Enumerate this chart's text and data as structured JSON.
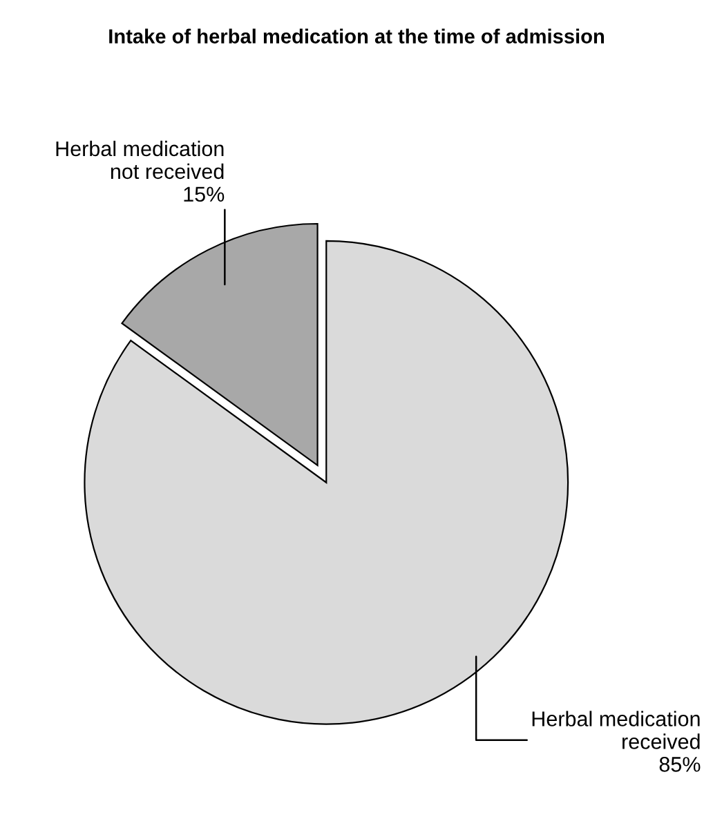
{
  "chart_data": {
    "type": "pie",
    "title": "Intake of herbal medication at the time of admission",
    "categories": [
      "Herbal medication\nreceived",
      "Herbal medication\nnot received"
    ],
    "values": [
      85,
      15
    ],
    "colors": [
      "#dadada",
      "#a8a8a8"
    ],
    "value_labels": [
      "85%",
      "15%"
    ]
  }
}
